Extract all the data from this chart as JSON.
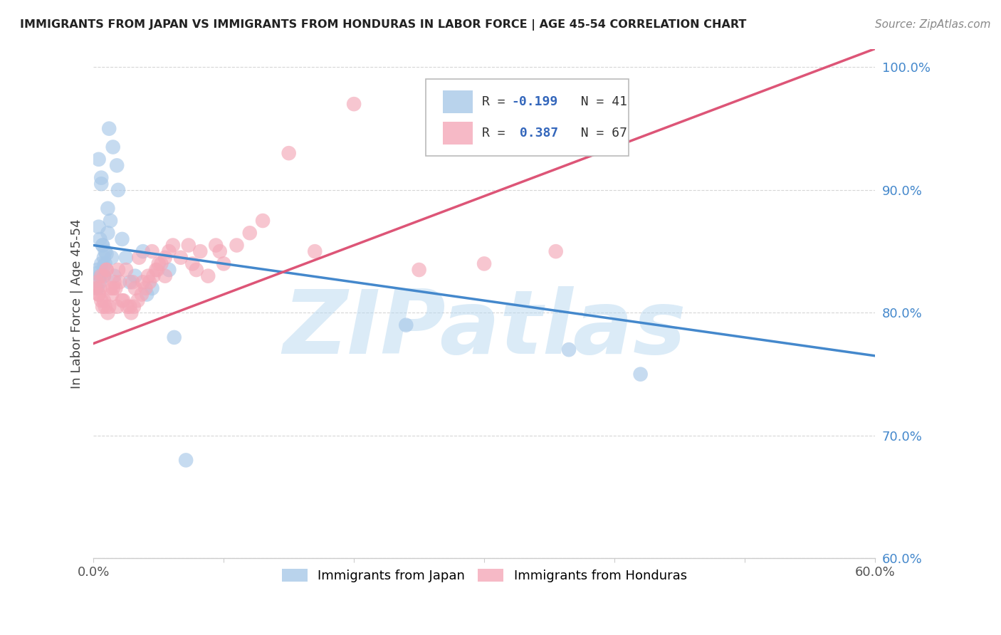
{
  "title": "IMMIGRANTS FROM JAPAN VS IMMIGRANTS FROM HONDURAS IN LABOR FORCE | AGE 45-54 CORRELATION CHART",
  "source": "Source: ZipAtlas.com",
  "ylabel": "In Labor Force | Age 45-54",
  "xlim": [
    0.0,
    60.0
  ],
  "ylim": [
    60.0,
    101.5
  ],
  "xtick_positions": [
    0.0,
    10.0,
    20.0,
    30.0,
    40.0,
    50.0,
    60.0
  ],
  "xtick_labels_shown": [
    "0.0%",
    "",
    "",
    "",
    "",
    "",
    "60.0%"
  ],
  "ytick_positions": [
    60.0,
    70.0,
    80.0,
    90.0,
    100.0
  ],
  "ytick_labels": [
    "60.0%",
    "70.0%",
    "80.0%",
    "90.0%",
    "100.0%"
  ],
  "japan_color": "#a8c8e8",
  "honduras_color": "#f4a8b8",
  "japan_R": -0.199,
  "japan_N": 41,
  "honduras_R": 0.387,
  "honduras_N": 67,
  "japan_line_color": "#4488cc",
  "honduras_line_color": "#dd5577",
  "japan_line_x": [
    0.0,
    60.0
  ],
  "japan_line_y": [
    85.5,
    76.5
  ],
  "honduras_line_x": [
    0.0,
    60.0
  ],
  "honduras_line_y": [
    77.5,
    101.5
  ],
  "watermark": "ZIPatlas",
  "watermark_color": "#b8d8f0",
  "legend_R_color": "#3366bb",
  "japan_x": [
    0.3,
    0.4,
    0.5,
    0.5,
    0.6,
    0.7,
    0.8,
    0.9,
    1.0,
    1.1,
    1.2,
    1.3,
    1.5,
    1.6,
    1.8,
    1.9,
    2.2,
    2.5,
    2.8,
    3.2,
    3.8,
    4.1,
    4.5,
    5.8,
    6.2,
    0.3,
    0.4,
    0.5,
    0.6,
    0.7,
    0.8,
    0.9,
    1.4,
    7.1,
    24.0,
    36.5,
    42.0,
    0.2,
    0.6,
    0.8,
    1.1
  ],
  "japan_y": [
    83.5,
    87.0,
    82.5,
    86.0,
    91.0,
    85.5,
    84.5,
    84.0,
    84.8,
    86.5,
    95.0,
    87.5,
    93.5,
    83.0,
    92.0,
    90.0,
    86.0,
    84.5,
    82.5,
    83.0,
    85.0,
    81.5,
    82.0,
    83.5,
    78.0,
    82.0,
    92.5,
    83.0,
    84.0,
    85.5,
    83.8,
    85.0,
    84.5,
    68.0,
    79.0,
    77.0,
    75.0,
    83.2,
    90.5,
    83.0,
    88.5
  ],
  "honduras_x": [
    0.2,
    0.3,
    0.4,
    0.5,
    0.6,
    0.7,
    0.8,
    0.9,
    1.0,
    1.1,
    1.2,
    1.3,
    1.5,
    1.7,
    1.8,
    2.0,
    2.2,
    2.5,
    2.8,
    3.0,
    3.2,
    3.5,
    3.8,
    4.0,
    4.2,
    4.5,
    4.8,
    5.0,
    5.5,
    0.4,
    0.6,
    0.8,
    1.0,
    1.4,
    1.6,
    1.9,
    2.3,
    2.6,
    2.9,
    3.1,
    3.4,
    3.7,
    4.3,
    4.6,
    4.9,
    5.2,
    5.5,
    5.8,
    6.1,
    6.7,
    7.3,
    7.6,
    8.2,
    8.8,
    9.4,
    10.0,
    11.0,
    12.0,
    13.0,
    15.0,
    17.0,
    20.0,
    25.0,
    30.0,
    35.5,
    7.9,
    9.7
  ],
  "honduras_y": [
    82.0,
    82.5,
    81.5,
    82.0,
    81.0,
    80.5,
    81.0,
    80.5,
    83.5,
    80.0,
    80.5,
    82.0,
    82.0,
    82.0,
    80.5,
    82.5,
    81.0,
    83.5,
    80.5,
    82.5,
    82.0,
    84.5,
    82.5,
    82.0,
    83.0,
    85.0,
    83.5,
    84.0,
    83.0,
    81.5,
    83.0,
    83.0,
    83.5,
    81.5,
    82.5,
    83.5,
    81.0,
    80.5,
    80.0,
    80.5,
    81.0,
    81.5,
    82.5,
    83.0,
    83.5,
    84.0,
    84.5,
    85.0,
    85.5,
    84.5,
    85.5,
    84.0,
    85.0,
    83.0,
    85.5,
    84.0,
    85.5,
    86.5,
    87.5,
    93.0,
    85.0,
    97.0,
    83.5,
    84.0,
    85.0,
    83.5,
    85.0
  ]
}
